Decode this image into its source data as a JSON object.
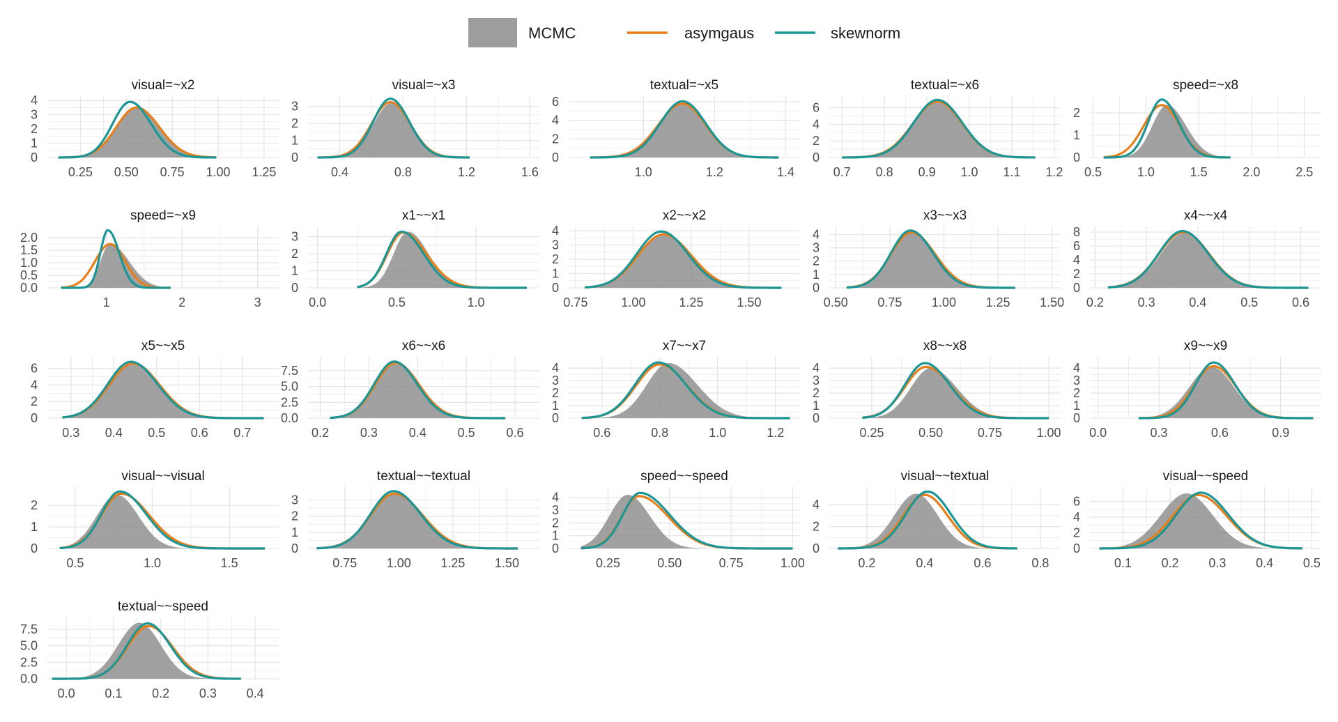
{
  "legend": {
    "mcmc_label": "MCMC",
    "asymgaus_label": "asymgaus",
    "skewnorm_label": "skewnorm"
  },
  "colors": {
    "mcmc_fill": "#8c8c8c",
    "asymgaus": "#e67e1a",
    "skewnorm": "#1a9696",
    "grid": "#e6e6e6",
    "text": "#1a1a1a",
    "tick_text": "#4d4d4d"
  },
  "chart_data": [
    {
      "type": "area",
      "title": "visual=~x2",
      "x_ticks": [
        0.25,
        0.5,
        0.75,
        1.0,
        1.25
      ],
      "x_tick_labels": [
        "0.25",
        "0.50",
        "0.75",
        "1.00",
        "1.25"
      ],
      "xlim": [
        0.07,
        1.33
      ],
      "y_ticks": [
        0,
        1,
        2,
        3,
        4
      ],
      "y_tick_labels": [
        "0",
        "1",
        "2",
        "3",
        "4"
      ],
      "ylim": [
        0,
        4.3
      ],
      "mcmc": {
        "mode": 0.555,
        "sd_left": 0.105,
        "sd_right": 0.125,
        "peak": 3.5
      },
      "asymgaus": {
        "mode": 0.555,
        "sd_left": 0.11,
        "sd_right": 0.125,
        "peak": 3.5
      },
      "skewnorm": {
        "mode": 0.52,
        "sd_left": 0.095,
        "sd_right": 0.115,
        "peak": 3.9
      },
      "x_range": [
        0.13,
        0.99
      ]
    },
    {
      "type": "area",
      "title": "visual=~x3",
      "x_ticks": [
        0.4,
        0.8,
        1.2,
        1.6
      ],
      "x_tick_labels": [
        "0.4",
        "0.8",
        "1.2",
        "1.6"
      ],
      "xlim": [
        0.2,
        1.66
      ],
      "y_ticks": [
        0,
        1,
        2,
        3
      ],
      "y_tick_labels": [
        "0",
        "1",
        "2",
        "3"
      ],
      "ylim": [
        0,
        3.6
      ],
      "mcmc": {
        "mode": 0.73,
        "sd_left": 0.12,
        "sd_right": 0.125,
        "peak": 3.2
      },
      "asymgaus": {
        "mode": 0.72,
        "sd_left": 0.12,
        "sd_right": 0.125,
        "peak": 3.25
      },
      "skewnorm": {
        "mode": 0.72,
        "sd_left": 0.11,
        "sd_right": 0.12,
        "peak": 3.45
      },
      "x_range": [
        0.26,
        1.22
      ]
    },
    {
      "type": "area",
      "title": "textual=~x5",
      "x_ticks": [
        1.0,
        1.2,
        1.4
      ],
      "x_tick_labels": [
        "1.0",
        "1.2",
        "1.4"
      ],
      "xlim": [
        0.79,
        1.44
      ],
      "y_ticks": [
        0,
        2,
        4,
        6
      ],
      "y_tick_labels": [
        "0",
        "2",
        "4",
        "6"
      ],
      "ylim": [
        0,
        6.6
      ],
      "mcmc": {
        "mode": 1.11,
        "sd_left": 0.065,
        "sd_right": 0.065,
        "peak": 5.8
      },
      "asymgaus": {
        "mode": 1.11,
        "sd_left": 0.068,
        "sd_right": 0.065,
        "peak": 5.8
      },
      "skewnorm": {
        "mode": 1.11,
        "sd_left": 0.063,
        "sd_right": 0.065,
        "peak": 6.05
      },
      "x_range": [
        0.85,
        1.38
      ]
    },
    {
      "type": "area",
      "title": "textual=~x6",
      "x_ticks": [
        0.7,
        0.8,
        0.9,
        1.0,
        1.1,
        1.2
      ],
      "x_tick_labels": [
        "0.7",
        "0.8",
        "0.9",
        "1.0",
        "1.1",
        "1.2"
      ],
      "xlim": [
        0.67,
        1.215
      ],
      "y_ticks": [
        0,
        2,
        4,
        6
      ],
      "y_tick_labels": [
        "0",
        "2",
        "4",
        "6"
      ],
      "ylim": [
        0,
        7.4
      ],
      "mcmc": {
        "mode": 0.925,
        "sd_left": 0.058,
        "sd_right": 0.058,
        "peak": 6.7
      },
      "asymgaus": {
        "mode": 0.925,
        "sd_left": 0.058,
        "sd_right": 0.058,
        "peak": 6.75
      },
      "skewnorm": {
        "mode": 0.925,
        "sd_left": 0.056,
        "sd_right": 0.058,
        "peak": 6.95
      },
      "x_range": [
        0.7,
        1.155
      ]
    },
    {
      "type": "area",
      "title": "speed=~x8",
      "x_ticks": [
        0.5,
        1.0,
        1.5,
        2.0,
        2.5
      ],
      "x_tick_labels": [
        "0.5",
        "1.0",
        "1.5",
        "2.0",
        "2.5"
      ],
      "xlim": [
        0.47,
        2.66
      ],
      "y_ticks": [
        0,
        1,
        2
      ],
      "y_tick_labels": [
        "0",
        "1",
        "2"
      ],
      "ylim": [
        0,
        2.75
      ],
      "mcmc": {
        "mode": 1.2,
        "sd_left": 0.14,
        "sd_right": 0.18,
        "peak": 2.35
      },
      "asymgaus": {
        "mode": 1.15,
        "sd_left": 0.17,
        "sd_right": 0.17,
        "peak": 2.35
      },
      "skewnorm": {
        "mode": 1.15,
        "sd_left": 0.13,
        "sd_right": 0.16,
        "peak": 2.6
      },
      "x_range": [
        0.6,
        1.8
      ]
    },
    {
      "type": "area",
      "title": "speed=~x9",
      "x_ticks": [
        1,
        2,
        3
      ],
      "x_tick_labels": [
        "1",
        "2",
        "3"
      ],
      "xlim": [
        0.22,
        3.28
      ],
      "y_ticks": [
        0,
        0.5,
        1.0,
        1.5,
        2.0
      ],
      "y_tick_labels": [
        "0.0",
        "0.5",
        "1.0",
        "1.5",
        "2.0"
      ],
      "ylim": [
        0,
        2.45
      ],
      "mcmc": {
        "mode": 1.05,
        "sd_left": 0.13,
        "sd_right": 0.25,
        "peak": 1.75
      },
      "asymgaus": {
        "mode": 1.05,
        "sd_left": 0.2,
        "sd_right": 0.2,
        "peak": 1.75
      },
      "skewnorm": {
        "mode": 1.02,
        "sd_left": 0.1,
        "sd_right": 0.15,
        "peak": 2.3
      },
      "x_range": [
        0.4,
        1.85
      ]
    },
    {
      "type": "area",
      "title": "x1~~x1",
      "x_ticks": [
        0.0,
        0.5,
        1.0
      ],
      "x_tick_labels": [
        "0.0",
        "0.5",
        "1.0"
      ],
      "xlim": [
        -0.06,
        1.4
      ],
      "y_ticks": [
        0,
        1,
        2,
        3
      ],
      "y_tick_labels": [
        "0",
        "1",
        "2",
        "3"
      ],
      "ylim": [
        0,
        3.6
      ],
      "mcmc": {
        "mode": 0.57,
        "sd_left": 0.09,
        "sd_right": 0.13,
        "peak": 3.3
      },
      "asymgaus": {
        "mode": 0.54,
        "sd_left": 0.1,
        "sd_right": 0.15,
        "peak": 3.25
      },
      "skewnorm": {
        "mode": 0.53,
        "sd_left": 0.095,
        "sd_right": 0.14,
        "peak": 3.3
      },
      "x_range": [
        0.25,
        1.32
      ]
    },
    {
      "type": "area",
      "title": "x2~~x2",
      "x_ticks": [
        0.75,
        1.0,
        1.25,
        1.5
      ],
      "x_tick_labels": [
        "0.75",
        "1.00",
        "1.25",
        "1.50"
      ],
      "xlim": [
        0.72,
        1.72
      ],
      "y_ticks": [
        0,
        1,
        2,
        3,
        4
      ],
      "y_tick_labels": [
        "0",
        "1",
        "2",
        "3",
        "4"
      ],
      "ylim": [
        0,
        4.3
      ],
      "mcmc": {
        "mode": 1.13,
        "sd_left": 0.11,
        "sd_right": 0.12,
        "peak": 3.7
      },
      "asymgaus": {
        "mode": 1.13,
        "sd_left": 0.11,
        "sd_right": 0.12,
        "peak": 3.75
      },
      "skewnorm": {
        "mode": 1.12,
        "sd_left": 0.105,
        "sd_right": 0.115,
        "peak": 3.95
      },
      "x_range": [
        0.79,
        1.64
      ]
    },
    {
      "type": "area",
      "title": "x3~~x3",
      "x_ticks": [
        0.5,
        0.75,
        1.0,
        1.25,
        1.5
      ],
      "x_tick_labels": [
        "0.50",
        "0.75",
        "1.00",
        "1.25",
        "1.50"
      ],
      "xlim": [
        0.47,
        1.54
      ],
      "y_ticks": [
        0,
        1,
        2,
        3,
        4
      ],
      "y_tick_labels": [
        "0",
        "1",
        "2",
        "3",
        "4"
      ],
      "ylim": [
        0,
        4.6
      ],
      "mcmc": {
        "mode": 0.85,
        "sd_left": 0.095,
        "sd_right": 0.11,
        "peak": 4.1
      },
      "asymgaus": {
        "mode": 0.85,
        "sd_left": 0.095,
        "sd_right": 0.11,
        "peak": 4.15
      },
      "skewnorm": {
        "mode": 0.845,
        "sd_left": 0.09,
        "sd_right": 0.105,
        "peak": 4.3
      },
      "x_range": [
        0.55,
        1.33
      ]
    },
    {
      "type": "area",
      "title": "x4~~x4",
      "x_ticks": [
        0.2,
        0.3,
        0.4,
        0.5,
        0.6
      ],
      "x_tick_labels": [
        "0.2",
        "0.3",
        "0.4",
        "0.5",
        "0.6"
      ],
      "xlim": [
        0.19,
        0.64
      ],
      "y_ticks": [
        0,
        2,
        4,
        6,
        8
      ],
      "y_tick_labels": [
        "0",
        "2",
        "4",
        "6",
        "8"
      ],
      "ylim": [
        0,
        8.8
      ],
      "mcmc": {
        "mode": 0.375,
        "sd_left": 0.048,
        "sd_right": 0.05,
        "peak": 7.9
      },
      "asymgaus": {
        "mode": 0.372,
        "sd_left": 0.048,
        "sd_right": 0.05,
        "peak": 8.0
      },
      "skewnorm": {
        "mode": 0.37,
        "sd_left": 0.046,
        "sd_right": 0.05,
        "peak": 8.15
      },
      "x_range": [
        0.225,
        0.615
      ]
    },
    {
      "type": "area",
      "title": "x5~~x5",
      "x_ticks": [
        0.3,
        0.4,
        0.5,
        0.6,
        0.7
      ],
      "x_tick_labels": [
        "0.3",
        "0.4",
        "0.5",
        "0.6",
        "0.7"
      ],
      "xlim": [
        0.245,
        0.785
      ],
      "y_ticks": [
        0,
        2,
        4,
        6
      ],
      "y_tick_labels": [
        "0",
        "2",
        "4",
        "6"
      ],
      "ylim": [
        0,
        7.4
      ],
      "mcmc": {
        "mode": 0.445,
        "sd_left": 0.055,
        "sd_right": 0.062,
        "peak": 6.6
      },
      "asymgaus": {
        "mode": 0.445,
        "sd_left": 0.056,
        "sd_right": 0.062,
        "peak": 6.6
      },
      "skewnorm": {
        "mode": 0.44,
        "sd_left": 0.054,
        "sd_right": 0.062,
        "peak": 6.8
      },
      "x_range": [
        0.28,
        0.75
      ]
    },
    {
      "type": "area",
      "title": "x6~~x6",
      "x_ticks": [
        0.2,
        0.3,
        0.4,
        0.5,
        0.6
      ],
      "x_tick_labels": [
        "0.2",
        "0.3",
        "0.4",
        "0.5",
        "0.6"
      ],
      "xlim": [
        0.175,
        0.65
      ],
      "y_ticks": [
        0,
        2.5,
        5.0,
        7.5
      ],
      "y_tick_labels": [
        "0.0",
        "2.5",
        "5.0",
        "7.5"
      ],
      "ylim": [
        0,
        9.7
      ],
      "mcmc": {
        "mode": 0.355,
        "sd_left": 0.042,
        "sd_right": 0.048,
        "peak": 8.7
      },
      "asymgaus": {
        "mode": 0.355,
        "sd_left": 0.042,
        "sd_right": 0.048,
        "peak": 8.75
      },
      "skewnorm": {
        "mode": 0.352,
        "sd_left": 0.041,
        "sd_right": 0.047,
        "peak": 8.95
      },
      "x_range": [
        0.22,
        0.58
      ]
    },
    {
      "type": "area",
      "title": "x7~~x7",
      "x_ticks": [
        0.6,
        0.8,
        1.0,
        1.2
      ],
      "x_tick_labels": [
        "0.6",
        "0.8",
        "1.0",
        "1.2"
      ],
      "xlim": [
        0.485,
        1.285
      ],
      "y_ticks": [
        0,
        1,
        2,
        3,
        4
      ],
      "y_tick_labels": [
        "0",
        "1",
        "2",
        "3",
        "4"
      ],
      "ylim": [
        0,
        4.9
      ],
      "mcmc": {
        "mode": 0.83,
        "sd_left": 0.075,
        "sd_right": 0.1,
        "peak": 4.4
      },
      "asymgaus": {
        "mode": 0.8,
        "sd_left": 0.082,
        "sd_right": 0.095,
        "peak": 4.3
      },
      "skewnorm": {
        "mode": 0.795,
        "sd_left": 0.08,
        "sd_right": 0.095,
        "peak": 4.45
      },
      "x_range": [
        0.53,
        1.25
      ]
    },
    {
      "type": "area",
      "title": "x8~~x8",
      "x_ticks": [
        0.25,
        0.5,
        0.75,
        1.0
      ],
      "x_tick_labels": [
        "0.25",
        "0.50",
        "0.75",
        "1.00"
      ],
      "xlim": [
        0.07,
        1.05
      ],
      "y_ticks": [
        0,
        1,
        2,
        3,
        4
      ],
      "y_tick_labels": [
        "0",
        "1",
        "2",
        "3",
        "4"
      ],
      "ylim": [
        0,
        4.9
      ],
      "mcmc": {
        "mode": 0.5,
        "sd_left": 0.085,
        "sd_right": 0.11,
        "peak": 4.0
      },
      "asymgaus": {
        "mode": 0.48,
        "sd_left": 0.09,
        "sd_right": 0.11,
        "peak": 4.1
      },
      "skewnorm": {
        "mode": 0.475,
        "sd_left": 0.085,
        "sd_right": 0.105,
        "peak": 4.4
      },
      "x_range": [
        0.21,
        1.0
      ]
    },
    {
      "type": "area",
      "title": "x9~~x9",
      "x_ticks": [
        0.0,
        0.3,
        0.6,
        0.9
      ],
      "x_tick_labels": [
        "0.0",
        "0.3",
        "0.6",
        "0.9"
      ],
      "xlim": [
        -0.04,
        1.1
      ],
      "y_ticks": [
        0,
        1,
        2,
        3,
        4
      ],
      "y_tick_labels": [
        "0",
        "1",
        "2",
        "3",
        "4"
      ],
      "ylim": [
        0,
        4.9
      ],
      "mcmc": {
        "mode": 0.56,
        "sd_left": 0.11,
        "sd_right": 0.11,
        "peak": 4.1
      },
      "asymgaus": {
        "mode": 0.57,
        "sd_left": 0.1,
        "sd_right": 0.11,
        "peak": 4.15
      },
      "skewnorm": {
        "mode": 0.57,
        "sd_left": 0.09,
        "sd_right": 0.105,
        "peak": 4.45
      },
      "x_range": [
        0.2,
        1.06
      ]
    },
    {
      "type": "area",
      "title": "visual~~visual",
      "x_ticks": [
        0.5,
        1.0,
        1.5
      ],
      "x_tick_labels": [
        "0.5",
        "1.0",
        "1.5"
      ],
      "xlim": [
        0.32,
        1.82
      ],
      "y_ticks": [
        0,
        1,
        2
      ],
      "y_tick_labels": [
        "0",
        "1",
        "2"
      ],
      "ylim": [
        0,
        2.85
      ],
      "mcmc": {
        "mode": 0.77,
        "sd_left": 0.13,
        "sd_right": 0.14,
        "peak": 2.5
      },
      "asymgaus": {
        "mode": 0.8,
        "sd_left": 0.13,
        "sd_right": 0.18,
        "peak": 2.55
      },
      "skewnorm": {
        "mode": 0.79,
        "sd_left": 0.12,
        "sd_right": 0.17,
        "peak": 2.65
      },
      "x_range": [
        0.4,
        1.73
      ]
    },
    {
      "type": "area",
      "title": "textual~~textual",
      "x_ticks": [
        0.75,
        1.0,
        1.25,
        1.5
      ],
      "x_tick_labels": [
        "0.75",
        "1.00",
        "1.25",
        "1.50"
      ],
      "xlim": [
        0.58,
        1.65
      ],
      "y_ticks": [
        0,
        1,
        2,
        3
      ],
      "y_tick_labels": [
        "0",
        "1",
        "2",
        "3"
      ],
      "ylim": [
        0,
        3.8
      ],
      "mcmc": {
        "mode": 0.98,
        "sd_left": 0.11,
        "sd_right": 0.13,
        "peak": 3.4
      },
      "asymgaus": {
        "mode": 0.98,
        "sd_left": 0.11,
        "sd_right": 0.13,
        "peak": 3.4
      },
      "skewnorm": {
        "mode": 0.975,
        "sd_left": 0.105,
        "sd_right": 0.125,
        "peak": 3.55
      },
      "x_range": [
        0.62,
        1.55
      ]
    },
    {
      "type": "area",
      "title": "speed~~speed",
      "x_ticks": [
        0.25,
        0.5,
        0.75,
        1.0
      ],
      "x_tick_labels": [
        "0.25",
        "0.50",
        "0.75",
        "1.00"
      ],
      "xlim": [
        0.09,
        1.03
      ],
      "y_ticks": [
        0,
        1,
        2,
        3,
        4
      ],
      "y_tick_labels": [
        "0",
        "1",
        "2",
        "3",
        "4"
      ],
      "ylim": [
        0,
        4.8
      ],
      "mcmc": {
        "mode": 0.33,
        "sd_left": 0.075,
        "sd_right": 0.09,
        "peak": 4.2
      },
      "asymgaus": {
        "mode": 0.375,
        "sd_left": 0.07,
        "sd_right": 0.12,
        "peak": 4.1
      },
      "skewnorm": {
        "mode": 0.38,
        "sd_left": 0.07,
        "sd_right": 0.12,
        "peak": 4.35
      },
      "x_range": [
        0.14,
        1.0
      ]
    },
    {
      "type": "area",
      "title": "visual~~textual",
      "x_ticks": [
        0.2,
        0.4,
        0.6,
        0.8
      ],
      "x_tick_labels": [
        "0.2",
        "0.4",
        "0.6",
        "0.8"
      ],
      "xlim": [
        0.07,
        0.87
      ],
      "y_ticks": [
        0,
        2,
        4
      ],
      "y_tick_labels": [
        "0",
        "2",
        "4"
      ],
      "ylim": [
        0,
        5.6
      ],
      "mcmc": {
        "mode": 0.37,
        "sd_left": 0.075,
        "sd_right": 0.075,
        "peak": 5.0
      },
      "asymgaus": {
        "mode": 0.4,
        "sd_left": 0.075,
        "sd_right": 0.08,
        "peak": 4.9
      },
      "skewnorm": {
        "mode": 0.41,
        "sd_left": 0.075,
        "sd_right": 0.08,
        "peak": 5.2
      },
      "x_range": [
        0.1,
        0.72
      ]
    },
    {
      "type": "area",
      "title": "visual~~speed",
      "x_ticks": [
        0.1,
        0.2,
        0.3,
        0.4,
        0.5
      ],
      "x_tick_labels": [
        "0.1",
        "0.2",
        "0.3",
        "0.4",
        "0.5"
      ],
      "xlim": [
        0.03,
        0.52
      ],
      "y_ticks": [
        0,
        2,
        4,
        6
      ],
      "y_tick_labels": [
        "0",
        "2",
        "4",
        "6"
      ],
      "ylim": [
        0,
        7.8
      ],
      "mcmc": {
        "mode": 0.235,
        "sd_left": 0.055,
        "sd_right": 0.055,
        "peak": 7.0
      },
      "asymgaus": {
        "mode": 0.26,
        "sd_left": 0.055,
        "sd_right": 0.06,
        "peak": 6.8
      },
      "skewnorm": {
        "mode": 0.265,
        "sd_left": 0.052,
        "sd_right": 0.058,
        "peak": 7.1
      },
      "x_range": [
        0.05,
        0.48
      ]
    },
    {
      "type": "area",
      "title": "textual~~speed",
      "x_ticks": [
        0.0,
        0.1,
        0.2,
        0.3,
        0.4
      ],
      "x_tick_labels": [
        "0.0",
        "0.1",
        "0.2",
        "0.3",
        "0.4"
      ],
      "xlim": [
        -0.04,
        0.45
      ],
      "y_ticks": [
        0,
        2.5,
        5.0,
        7.5
      ],
      "y_tick_labels": [
        "0.0",
        "2.5",
        "5.0",
        "7.5"
      ],
      "ylim": [
        0,
        9.3
      ],
      "mcmc": {
        "mode": 0.155,
        "sd_left": 0.045,
        "sd_right": 0.045,
        "peak": 8.5
      },
      "asymgaus": {
        "mode": 0.175,
        "sd_left": 0.045,
        "sd_right": 0.05,
        "peak": 8.0
      },
      "skewnorm": {
        "mode": 0.172,
        "sd_left": 0.043,
        "sd_right": 0.048,
        "peak": 8.4
      },
      "x_range": [
        -0.03,
        0.37
      ]
    }
  ]
}
